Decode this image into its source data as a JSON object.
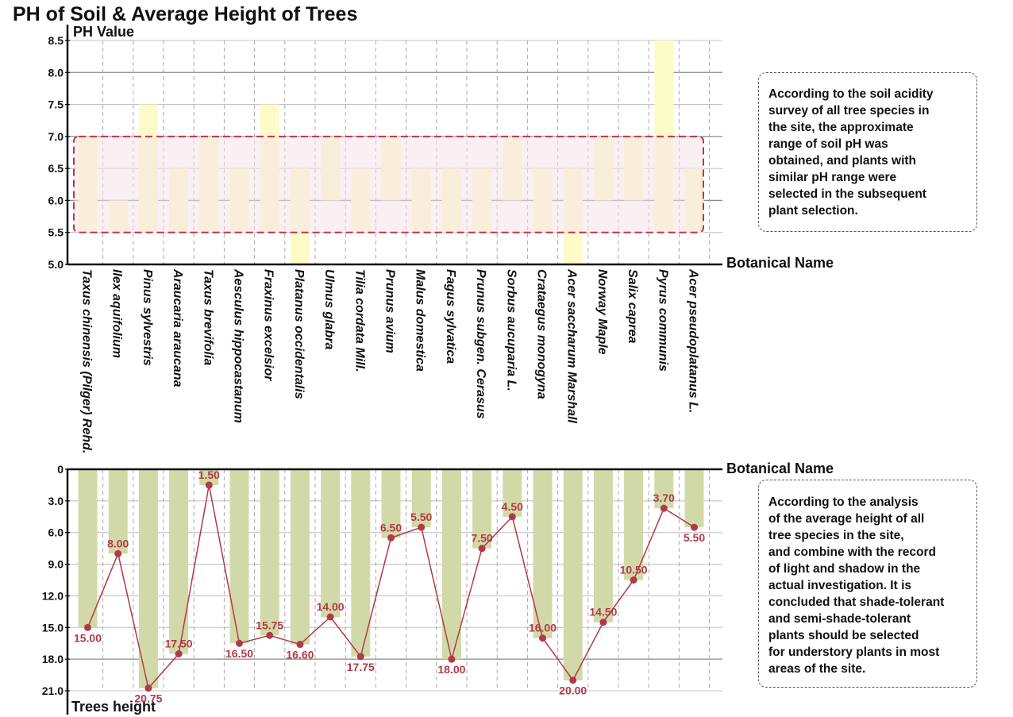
{
  "chart_data": [
    {
      "type": "range-bar",
      "title": "PH of Soil &  Average Height of Trees",
      "ylabel": "PH Value",
      "xlabel": "Botanical Name",
      "ylim": [
        5.0,
        8.5
      ],
      "yticks": [
        "5.0",
        "5.5",
        "6.0",
        "6.5",
        "7.0",
        "7.5",
        "8.0",
        "8.5"
      ],
      "highlight_band": [
        5.5,
        7.0
      ],
      "bar_color": "#fdfbc8",
      "band_fill": "#f5e4ea",
      "band_stroke": "#c0344a",
      "categories": [
        "Taxus chinensis (Pilger) Rehd.",
        "Ilex aquifolium",
        "Pinus sylvestris",
        "Araucaria araucana",
        "Taxus brevifolia",
        "Aesculus hippocastanum",
        "Fraxinus excelsior",
        "Platanus occidentalis",
        "Ulmus glabra",
        "Tilia cordata Mill.",
        "Prunus avium",
        "Malus domestica",
        "Fagus sylvatica",
        "Prunus subgen. Cerasus",
        "Sorbus aucuparia L.",
        "Crataegus monogyna",
        "Acer saccharum Marshall",
        "Norway Maple",
        "Salix caprea",
        "Pyrus communis",
        "Acer pseudoplatanus L."
      ],
      "ph_min": [
        5.5,
        5.5,
        5.5,
        5.5,
        5.5,
        5.5,
        5.5,
        5.0,
        6.0,
        5.5,
        6.0,
        5.5,
        5.5,
        5.5,
        6.0,
        5.5,
        5.0,
        6.0,
        6.0,
        5.5,
        5.5
      ],
      "ph_max": [
        7.0,
        6.0,
        7.5,
        6.5,
        7.0,
        6.5,
        7.5,
        6.5,
        7.0,
        6.5,
        7.0,
        6.5,
        6.5,
        6.5,
        7.0,
        6.5,
        6.5,
        7.0,
        7.0,
        8.5,
        6.5
      ]
    },
    {
      "type": "bar+line",
      "ylabel": "Trees height",
      "xlabel": "Botanical Name",
      "ylim": [
        0,
        21
      ],
      "inverted": true,
      "yticks": [
        "0",
        "3.0",
        "6.0",
        "9.0",
        "12.0",
        "15.0",
        "18.0",
        "21.0"
      ],
      "bar_color": "#d2d9a8",
      "line_color": "#b03a48",
      "categories": [
        "Taxus chinensis (Pilger) Rehd.",
        "Ilex aquifolium",
        "Pinus sylvestris",
        "Araucaria araucana",
        "Taxus brevifolia",
        "Aesculus hippocastanum",
        "Fraxinus excelsior",
        "Platanus occidentalis",
        "Ulmus glabra",
        "Tilia cordata Mill.",
        "Prunus avium",
        "Malus domestica",
        "Fagus sylvatica",
        "Prunus subgen. Cerasus",
        "Sorbus aucuparia L.",
        "Crataegus monogyna",
        "Acer saccharum Marshall",
        "Norway Maple",
        "Salix caprea",
        "Pyrus communis",
        "Acer pseudoplatanus L."
      ],
      "values": [
        15.0,
        8.0,
        20.75,
        17.5,
        1.5,
        16.5,
        15.75,
        16.6,
        14.0,
        17.75,
        6.5,
        5.5,
        18.0,
        7.5,
        4.5,
        16.0,
        20.0,
        14.5,
        10.5,
        3.7,
        5.5
      ],
      "value_labels": [
        "15.00",
        "8.00",
        "20.75",
        "17.50",
        "1.50",
        "16.50",
        "15.75",
        "16.60",
        "14.00",
        "17.75",
        "6.50",
        "5.50",
        "18.00",
        "7.50",
        "4.50",
        "16.00",
        "20.00",
        "14.50",
        "10.50",
        "3.70",
        "5.50"
      ]
    }
  ],
  "notes": {
    "ph_note": "According to the soil acidity\nsurvey of all tree species in\nthe site, the approximate\nrange of soil pH was\nobtained, and plants with\nsimilar pH range were\nselected in the subsequent\nplant selection.",
    "height_note": "According to the analysis\nof the average height of all\ntree species in the site,\nand combine with the record\nof light and shadow in the\nactual investigation. It is\nconcluded that shade-tolerant\nand semi-shade-tolerant\nplants should be selected\nfor understory plants in most\nareas of the site."
  }
}
